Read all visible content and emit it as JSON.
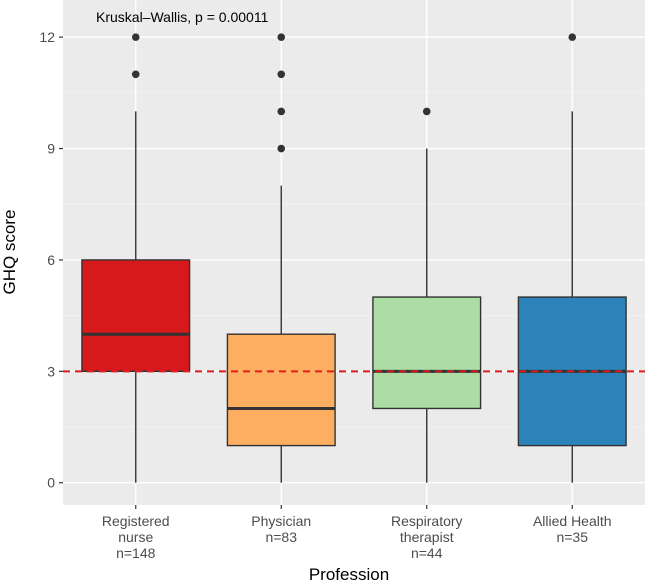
{
  "chart_data": {
    "type": "boxplot",
    "title": "",
    "annotation": "Kruskal–Wallis, p = 0.00011",
    "xlabel": "Profession",
    "ylabel": "GHQ score",
    "ylim": [
      -0.6,
      13.0
    ],
    "yticks": [
      0,
      3,
      6,
      9,
      12
    ],
    "ytick_labels": [
      "0",
      "3",
      "6",
      "9",
      "12"
    ],
    "reference_line": {
      "y": 3,
      "style": "dashed",
      "color": "#e41a1c"
    },
    "grid": true,
    "categories": [
      {
        "label_lines": [
          "Registered",
          "nurse",
          "n=148"
        ],
        "fill": "#d7191c",
        "whisker_low": 0,
        "q1": 3,
        "median": 4,
        "q3": 6,
        "whisker_high": 10,
        "outliers": [
          11,
          12
        ]
      },
      {
        "label_lines": [
          "Physician",
          "n=83"
        ],
        "fill": "#fdae61",
        "whisker_low": 0,
        "q1": 1,
        "median": 2,
        "q3": 4,
        "whisker_high": 8,
        "outliers": [
          9,
          10,
          11,
          12
        ]
      },
      {
        "label_lines": [
          "Respiratory",
          "therapist",
          "n=44"
        ],
        "fill": "#abdda4",
        "whisker_low": 0,
        "q1": 2,
        "median": 3,
        "q3": 5,
        "whisker_high": 9,
        "outliers": [
          10
        ]
      },
      {
        "label_lines": [
          "Allied Health",
          "n=35"
        ],
        "fill": "#2b83ba",
        "whisker_low": 0,
        "q1": 1,
        "median": 3,
        "q3": 5,
        "whisker_high": 10,
        "outliers": [
          12
        ]
      }
    ]
  }
}
